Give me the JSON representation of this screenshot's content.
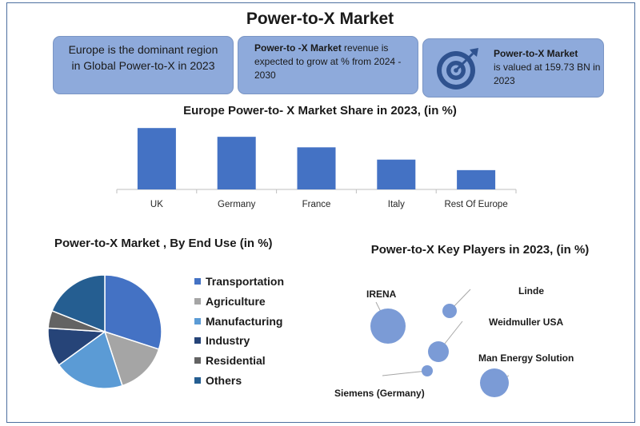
{
  "header": {
    "title": "Power-to-X Market"
  },
  "info_boxes": {
    "box1": {
      "text": "Europe is the dominant region in Global Power-to-X in 2023"
    },
    "box2": {
      "bold": "Power-to -X Market",
      "rest": " revenue is expected to grow at % from 2024 - 2030"
    },
    "box3": {
      "bold": "Power-to-X Market",
      "rest": "is valued at 159.73 BN in 2023",
      "icon": "target-icon"
    }
  },
  "colors": {
    "bar": "#4472c4",
    "box": "#8eaadb",
    "bubble": "#7b9bd6",
    "frame": "#4d6f9f"
  },
  "chart_data": [
    {
      "type": "bar",
      "title": "Europe Power-to- X  Market Share in 2023,  (in %)",
      "categories": [
        "UK",
        "Germany",
        "France",
        "Italy",
        "Rest Of Europe"
      ],
      "values": [
        35,
        30,
        24,
        17,
        11
      ],
      "ylim": [
        0,
        36
      ],
      "grid": false
    },
    {
      "type": "pie",
      "title": "Power-to-X  Market , By End Use (in %)",
      "legend_position": "right",
      "slices": [
        {
          "name": "Transportation",
          "value": 30,
          "color": "#4472c4"
        },
        {
          "name": "Agriculture",
          "value": 15,
          "color": "#a5a5a5"
        },
        {
          "name": "Manufacturing",
          "value": 20,
          "color": "#5b9bd5"
        },
        {
          "name": "Industry",
          "value": 11,
          "color": "#264478"
        },
        {
          "name": "Residential",
          "value": 5,
          "color": "#636363"
        },
        {
          "name": "Others",
          "value": 19,
          "color": "#255e91"
        }
      ]
    },
    {
      "type": "scatter",
      "title": "Power-to-X Key Players in 2023, (in %)",
      "points": [
        {
          "name": "IRENA",
          "size": 22
        },
        {
          "name": "Linde",
          "size": 9
        },
        {
          "name": "Weidmuller USA",
          "size": 13
        },
        {
          "name": "Siemens (Germany)",
          "size": 7
        },
        {
          "name": "Man Energy Solution",
          "size": 18
        }
      ]
    }
  ]
}
